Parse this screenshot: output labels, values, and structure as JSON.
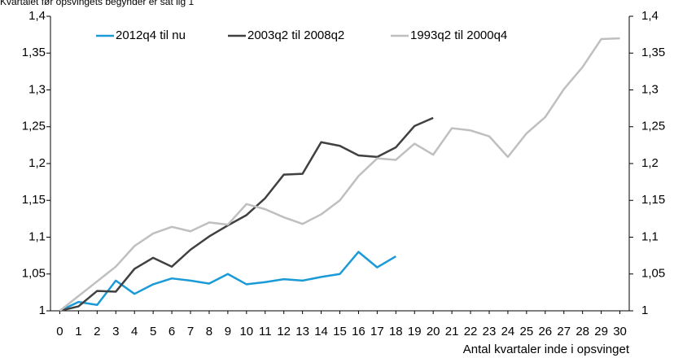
{
  "chart_data": {
    "type": "line",
    "subtitle": "Kvartalet før opsvingets begynder er sat lig 1",
    "xlabel": "Antal kvartaler inde i opsvinget",
    "x": [
      0,
      1,
      2,
      3,
      4,
      5,
      6,
      7,
      8,
      9,
      10,
      11,
      12,
      13,
      14,
      15,
      16,
      17,
      18,
      19,
      20,
      21,
      22,
      23,
      24,
      25,
      26,
      27,
      28,
      29,
      30
    ],
    "xlim": [
      -0.5,
      30.5
    ],
    "xticks": [
      0,
      1,
      2,
      3,
      4,
      5,
      6,
      7,
      8,
      9,
      10,
      11,
      12,
      13,
      14,
      15,
      16,
      17,
      18,
      19,
      20,
      21,
      22,
      23,
      24,
      25,
      26,
      27,
      28,
      29,
      30
    ],
    "ylim": [
      1,
      1.4
    ],
    "yticks": [
      1,
      {
        "value": 1.05,
        "label": "1,05"
      },
      {
        "value": 1.1,
        "label": "1,1"
      },
      {
        "value": 1.15,
        "label": "1,15"
      },
      {
        "value": 1.2,
        "label": "1,2"
      },
      {
        "value": 1.25,
        "label": "1,25"
      },
      {
        "value": 1.3,
        "label": "1,3"
      },
      {
        "value": 1.35,
        "label": "1,35"
      },
      {
        "value": 1.4,
        "label": "1,4"
      }
    ],
    "y2lim": [
      1,
      1.4
    ],
    "y2ticks": [
      1,
      {
        "value": 1.05,
        "label": "1,05"
      },
      {
        "value": 1.1,
        "label": "1,1"
      },
      {
        "value": 1.15,
        "label": "1,15"
      },
      {
        "value": 1.2,
        "label": "1,2"
      },
      {
        "value": 1.25,
        "label": "1,25"
      },
      {
        "value": 1.3,
        "label": "1,3"
      },
      {
        "value": 1.35,
        "label": "1,35"
      },
      {
        "value": 1.4,
        "label": "1,4"
      }
    ],
    "grid": false,
    "legend": "top",
    "series": [
      {
        "name": "2012q4 til nu",
        "color": "#1a9ad6",
        "values": [
          1,
          1.012,
          1.008,
          1.041,
          1.023,
          1.036,
          1.044,
          1.041,
          1.037,
          1.05,
          1.036,
          1.039,
          1.043,
          1.041,
          1.046,
          1.05,
          1.08,
          1.059,
          1.074,
          null,
          null,
          null,
          null,
          null,
          null,
          null,
          null,
          null,
          null,
          null,
          null
        ]
      },
      {
        "name": "2003q2 til 2008q2",
        "color": "#404040",
        "values": [
          1,
          1.006,
          1.027,
          1.026,
          1.057,
          1.072,
          1.06,
          1.083,
          1.101,
          1.116,
          1.13,
          1.153,
          1.185,
          1.186,
          1.229,
          1.224,
          1.211,
          1.209,
          1.222,
          1.251,
          1.262,
          null,
          null,
          null,
          null,
          null,
          null,
          null,
          null,
          null,
          null
        ]
      },
      {
        "name": "1993q2 til 2000q4",
        "color": "#bfbfbf",
        "values": [
          1,
          1.02,
          1.04,
          1.06,
          1.088,
          1.105,
          1.114,
          1.108,
          1.12,
          1.117,
          1.145,
          1.138,
          1.127,
          1.118,
          1.131,
          1.15,
          1.183,
          1.207,
          1.205,
          1.227,
          1.212,
          1.248,
          1.245,
          1.237,
          1.209,
          1.241,
          1.263,
          1.301,
          1.331,
          1.369,
          1.37
        ]
      }
    ]
  }
}
